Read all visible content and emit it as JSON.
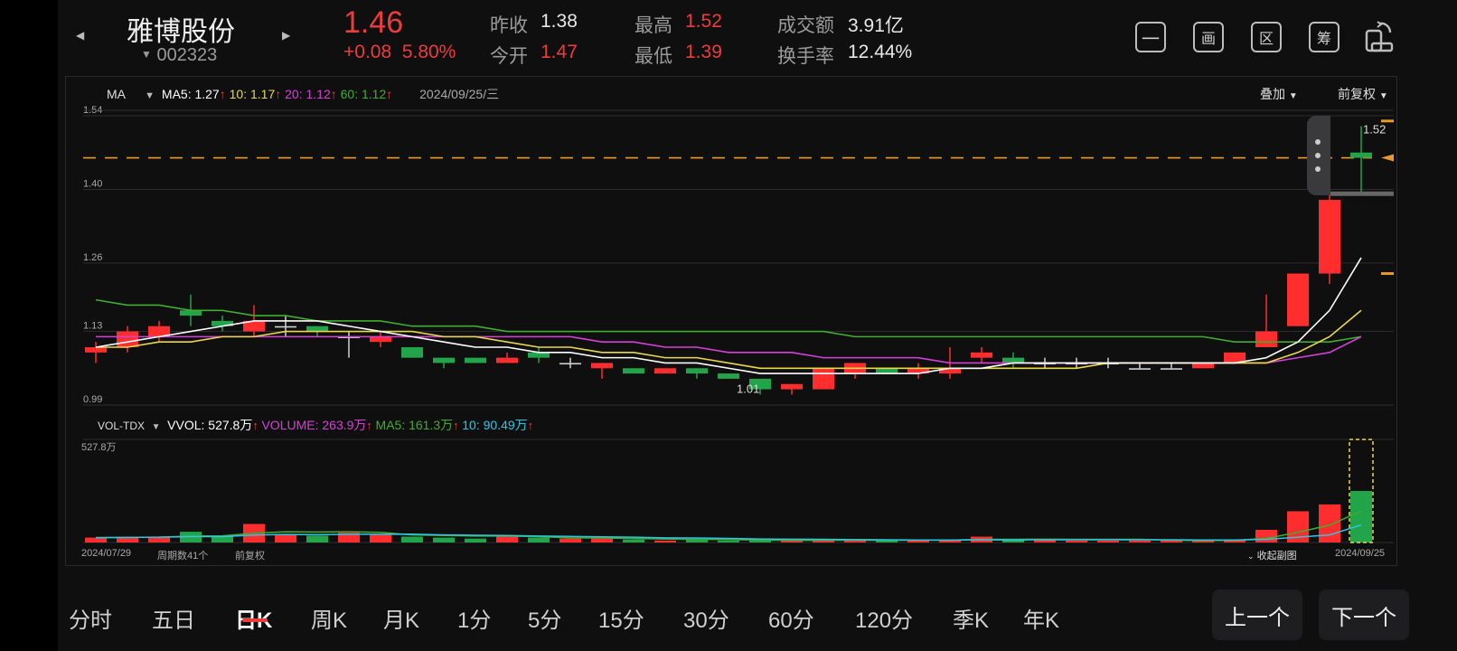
{
  "header": {
    "stock_name": "雅博股份",
    "stock_code": "002323",
    "price": "1.46",
    "change": "+0.08",
    "change_pct": "5.80%",
    "stats": [
      {
        "label": "昨收",
        "value": "1.38",
        "color": "#e8e8e8"
      },
      {
        "label": "今开",
        "value": "1.47",
        "color": "#ee3b3b"
      },
      {
        "label": "最高",
        "value": "1.52",
        "color": "#ee3b3b"
      },
      {
        "label": "最低",
        "value": "1.39",
        "color": "#ee3b3b"
      },
      {
        "label": "成交额",
        "value": "3.91亿",
        "color": "#e8e8e8"
      },
      {
        "label": "换手率",
        "value": "12.44%",
        "color": "#e8e8e8"
      }
    ],
    "tools": [
      "一",
      "画",
      "区",
      "筹"
    ]
  },
  "ma_legend": {
    "indicator": "MA",
    "ma5": "MA5: 1.27",
    "ma10": "10: 1.17",
    "ma20": "20: 1.12",
    "ma60": "60: 1.12",
    "date": "2024/09/25/三",
    "overlay": "叠加",
    "adjust": "前复权"
  },
  "vol_legend": {
    "indicator": "VOL-TDX",
    "vvol": "VVOL: 527.8万",
    "volume": "VOLUME: 263.9万",
    "ma5": "MA5: 161.3万",
    "ma10": "10: 90.49万",
    "max_label": "527.8万"
  },
  "footer": {
    "start_date": "2024/07/29",
    "period_count": "周期数41个",
    "adjust": "前复权",
    "collapse": "收起副图",
    "end_date": "2024/09/25"
  },
  "tabs": [
    "分时",
    "五日",
    "日K",
    "周K",
    "月K",
    "1分",
    "5分",
    "15分",
    "30分",
    "60分",
    "120分",
    "季K",
    "年K"
  ],
  "active_tab": 2,
  "prev_button": "上一个",
  "next_button": "下一个",
  "colors": {
    "up": "#ff2d2d",
    "down": "#22a44a",
    "ma5": "#ffffff",
    "ma10": "#e8d84a",
    "ma20": "#d640d6",
    "ma60": "#3fae2e",
    "vol_ma10": "#2fc6e6",
    "dash": "#e89a2a"
  },
  "chart_data": {
    "type": "candlestick",
    "y_ticks": [
      "1.54",
      "1.40",
      "1.26",
      "1.13",
      "0.99"
    ],
    "price_range": [
      0.99,
      1.54
    ],
    "high_marker": "1.52",
    "low_marker": "1.01",
    "reference_line": 1.46,
    "candles": [
      {
        "o": 1.09,
        "c": 1.1,
        "h": 1.11,
        "l": 1.07
      },
      {
        "o": 1.1,
        "c": 1.13,
        "h": 1.14,
        "l": 1.09
      },
      {
        "o": 1.12,
        "c": 1.14,
        "h": 1.15,
        "l": 1.11
      },
      {
        "o": 1.17,
        "c": 1.16,
        "h": 1.2,
        "l": 1.14
      },
      {
        "o": 1.15,
        "c": 1.14,
        "h": 1.16,
        "l": 1.13
      },
      {
        "o": 1.13,
        "c": 1.15,
        "h": 1.18,
        "l": 1.12
      },
      {
        "o": 1.14,
        "c": 1.14,
        "h": 1.16,
        "l": 1.12
      },
      {
        "o": 1.14,
        "c": 1.13,
        "h": 1.14,
        "l": 1.12
      },
      {
        "o": 1.12,
        "c": 1.12,
        "h": 1.13,
        "l": 1.08
      },
      {
        "o": 1.11,
        "c": 1.12,
        "h": 1.13,
        "l": 1.1
      },
      {
        "o": 1.1,
        "c": 1.08,
        "h": 1.1,
        "l": 1.08
      },
      {
        "o": 1.08,
        "c": 1.07,
        "h": 1.08,
        "l": 1.06
      },
      {
        "o": 1.08,
        "c": 1.07,
        "h": 1.08,
        "l": 1.07
      },
      {
        "o": 1.07,
        "c": 1.08,
        "h": 1.09,
        "l": 1.07
      },
      {
        "o": 1.09,
        "c": 1.08,
        "h": 1.1,
        "l": 1.07
      },
      {
        "o": 1.07,
        "c": 1.07,
        "h": 1.08,
        "l": 1.06
      },
      {
        "o": 1.06,
        "c": 1.07,
        "h": 1.07,
        "l": 1.04
      },
      {
        "o": 1.06,
        "c": 1.05,
        "h": 1.06,
        "l": 1.05
      },
      {
        "o": 1.05,
        "c": 1.06,
        "h": 1.06,
        "l": 1.05
      },
      {
        "o": 1.06,
        "c": 1.05,
        "h": 1.06,
        "l": 1.04
      },
      {
        "o": 1.05,
        "c": 1.04,
        "h": 1.05,
        "l": 1.04
      },
      {
        "o": 1.04,
        "c": 1.02,
        "h": 1.04,
        "l": 1.01
      },
      {
        "o": 1.02,
        "c": 1.03,
        "h": 1.03,
        "l": 1.01
      },
      {
        "o": 1.02,
        "c": 1.06,
        "h": 1.06,
        "l": 1.02
      },
      {
        "o": 1.05,
        "c": 1.07,
        "h": 1.07,
        "l": 1.04
      },
      {
        "o": 1.06,
        "c": 1.05,
        "h": 1.06,
        "l": 1.05
      },
      {
        "o": 1.05,
        "c": 1.06,
        "h": 1.07,
        "l": 1.04
      },
      {
        "o": 1.05,
        "c": 1.06,
        "h": 1.1,
        "l": 1.04
      },
      {
        "o": 1.08,
        "c": 1.09,
        "h": 1.1,
        "l": 1.07
      },
      {
        "o": 1.08,
        "c": 1.07,
        "h": 1.09,
        "l": 1.06
      },
      {
        "o": 1.07,
        "c": 1.07,
        "h": 1.08,
        "l": 1.06
      },
      {
        "o": 1.07,
        "c": 1.07,
        "h": 1.08,
        "l": 1.06
      },
      {
        "o": 1.07,
        "c": 1.07,
        "h": 1.08,
        "l": 1.06
      },
      {
        "o": 1.06,
        "c": 1.06,
        "h": 1.07,
        "l": 1.06
      },
      {
        "o": 1.06,
        "c": 1.06,
        "h": 1.07,
        "l": 1.06
      },
      {
        "o": 1.06,
        "c": 1.07,
        "h": 1.07,
        "l": 1.06
      },
      {
        "o": 1.07,
        "c": 1.09,
        "h": 1.09,
        "l": 1.07
      },
      {
        "o": 1.1,
        "c": 1.13,
        "h": 1.2,
        "l": 1.1
      },
      {
        "o": 1.14,
        "c": 1.24,
        "h": 1.24,
        "l": 1.14
      },
      {
        "o": 1.24,
        "c": 1.38,
        "h": 1.39,
        "l": 1.22
      },
      {
        "o": 1.47,
        "c": 1.46,
        "h": 1.52,
        "l": 1.39
      }
    ],
    "ma5": [
      1.1,
      1.11,
      1.12,
      1.13,
      1.14,
      1.15,
      1.15,
      1.15,
      1.14,
      1.13,
      1.12,
      1.11,
      1.1,
      1.1,
      1.09,
      1.09,
      1.08,
      1.08,
      1.07,
      1.07,
      1.06,
      1.05,
      1.05,
      1.05,
      1.05,
      1.05,
      1.05,
      1.06,
      1.06,
      1.07,
      1.07,
      1.07,
      1.07,
      1.07,
      1.07,
      1.07,
      1.07,
      1.08,
      1.11,
      1.17,
      1.27
    ],
    "ma10": [
      1.1,
      1.1,
      1.11,
      1.11,
      1.12,
      1.12,
      1.13,
      1.13,
      1.13,
      1.13,
      1.13,
      1.12,
      1.12,
      1.11,
      1.1,
      1.1,
      1.09,
      1.09,
      1.08,
      1.08,
      1.07,
      1.06,
      1.06,
      1.06,
      1.06,
      1.06,
      1.06,
      1.06,
      1.06,
      1.06,
      1.06,
      1.06,
      1.07,
      1.07,
      1.07,
      1.07,
      1.07,
      1.07,
      1.09,
      1.12,
      1.17
    ],
    "ma20": [
      1.12,
      1.12,
      1.12,
      1.12,
      1.12,
      1.12,
      1.12,
      1.12,
      1.12,
      1.12,
      1.12,
      1.12,
      1.12,
      1.12,
      1.12,
      1.12,
      1.11,
      1.11,
      1.1,
      1.1,
      1.09,
      1.09,
      1.09,
      1.08,
      1.08,
      1.08,
      1.08,
      1.07,
      1.07,
      1.07,
      1.07,
      1.07,
      1.07,
      1.07,
      1.07,
      1.07,
      1.07,
      1.07,
      1.08,
      1.09,
      1.12
    ],
    "ma60": [
      1.19,
      1.18,
      1.18,
      1.17,
      1.17,
      1.16,
      1.16,
      1.15,
      1.15,
      1.15,
      1.14,
      1.14,
      1.14,
      1.13,
      1.13,
      1.13,
      1.13,
      1.13,
      1.13,
      1.13,
      1.13,
      1.13,
      1.13,
      1.13,
      1.12,
      1.12,
      1.12,
      1.12,
      1.12,
      1.12,
      1.12,
      1.12,
      1.12,
      1.12,
      1.12,
      1.12,
      1.11,
      1.11,
      1.11,
      1.11,
      1.12
    ],
    "volume": [
      25,
      30,
      25,
      55,
      35,
      95,
      40,
      35,
      50,
      40,
      30,
      25,
      20,
      30,
      25,
      20,
      20,
      15,
      10,
      15,
      10,
      10,
      10,
      10,
      15,
      10,
      15,
      10,
      30,
      15,
      15,
      10,
      10,
      10,
      10,
      10,
      15,
      65,
      160,
      195,
      264
    ],
    "volume_ma5": [
      25,
      26,
      27,
      33,
      34,
      48,
      55,
      54,
      55,
      52,
      39,
      36,
      33,
      33,
      30,
      24,
      23,
      20,
      18,
      16,
      15,
      12,
      11,
      11,
      12,
      11,
      12,
      12,
      16,
      16,
      17,
      16,
      16,
      16,
      12,
      10,
      11,
      21,
      52,
      89,
      161
    ],
    "volume_ma10": [
      25,
      26,
      27,
      30,
      30,
      38,
      41,
      40,
      42,
      42,
      43,
      39,
      37,
      36,
      33,
      31,
      29,
      27,
      24,
      23,
      21,
      18,
      17,
      16,
      15,
      14,
      13,
      12,
      14,
      13,
      14,
      14,
      14,
      14,
      14,
      13,
      13,
      16,
      27,
      39,
      90
    ],
    "volume_max": 527.8
  }
}
